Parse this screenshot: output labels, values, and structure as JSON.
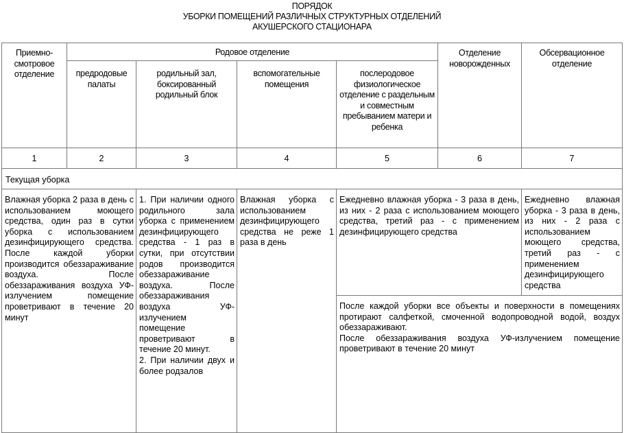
{
  "title": [
    "ПОРЯДОК",
    "УБОРКИ ПОМЕЩЕНИЙ РАЗЛИЧНЫХ СТРУКТУРНЫХ ОТДЕЛЕНИЙ",
    "АКУШЕРСКОГО СТАЦИОНАРА"
  ],
  "header": {
    "col1": "Приемно-смотровое отделение",
    "rodovoe": "Родовое отделение",
    "col2": "предродовые палаты",
    "col3": "родильный зал, боксированный родильный блок",
    "col4": "вспомогательные помещения",
    "col5": "послеродовое физиологическое отделение с раздельным и совместным пребыванием матери и ребенка",
    "col6": "Отделение новорожденных",
    "col7": "Обсервационное отделение"
  },
  "numbers": [
    "1",
    "2",
    "3",
    "4",
    "5",
    "6",
    "7"
  ],
  "section": "Текущая уборка",
  "cells": {
    "c12": "Влажная уборка 2 раза в день с использованием моющего средства, один раз в сутки уборка с использованием дезинфицирующего средства. После каждой уборки производится обеззараживание воздуха. После обеззараживания воздуха УФ-излучением помещение проветривают в течение 20 минут",
    "c3_p1": "1. При наличии одного родильного зала уборка с применением дезинфицирующего средства - 1 раз в сутки, при отсутствии родов производится обеззараживание воздуха. После обеззараживания воздуха УФ-излучением помещение проветривают в течение 20 минут.",
    "c3_p2": "2. При наличии двух и более родзалов",
    "c4": "Влажная уборка с использованием дезинфицирующего средства не реже 1 раза в день",
    "c56": "Ежедневно влажная уборка - 3 раза в день, из них - 2 раза с использованием моющего средства, третий раз - с применением дезинфицирующего средства",
    "c7": "Ежедневно влажная уборка - 3 раза в день, из них - 2 раза с использованием моющего средства, третий раз - с применением дезинфицирующего средства",
    "c567_p1": "После каждой уборки все объекты и поверхности в помещениях протирают салфеткой, смоченной водопроводной водой, воздух обеззараживают.",
    "c567_p2": "После обеззараживания воздуха УФ-излучением помещение проветривают в течение 20 минут"
  }
}
